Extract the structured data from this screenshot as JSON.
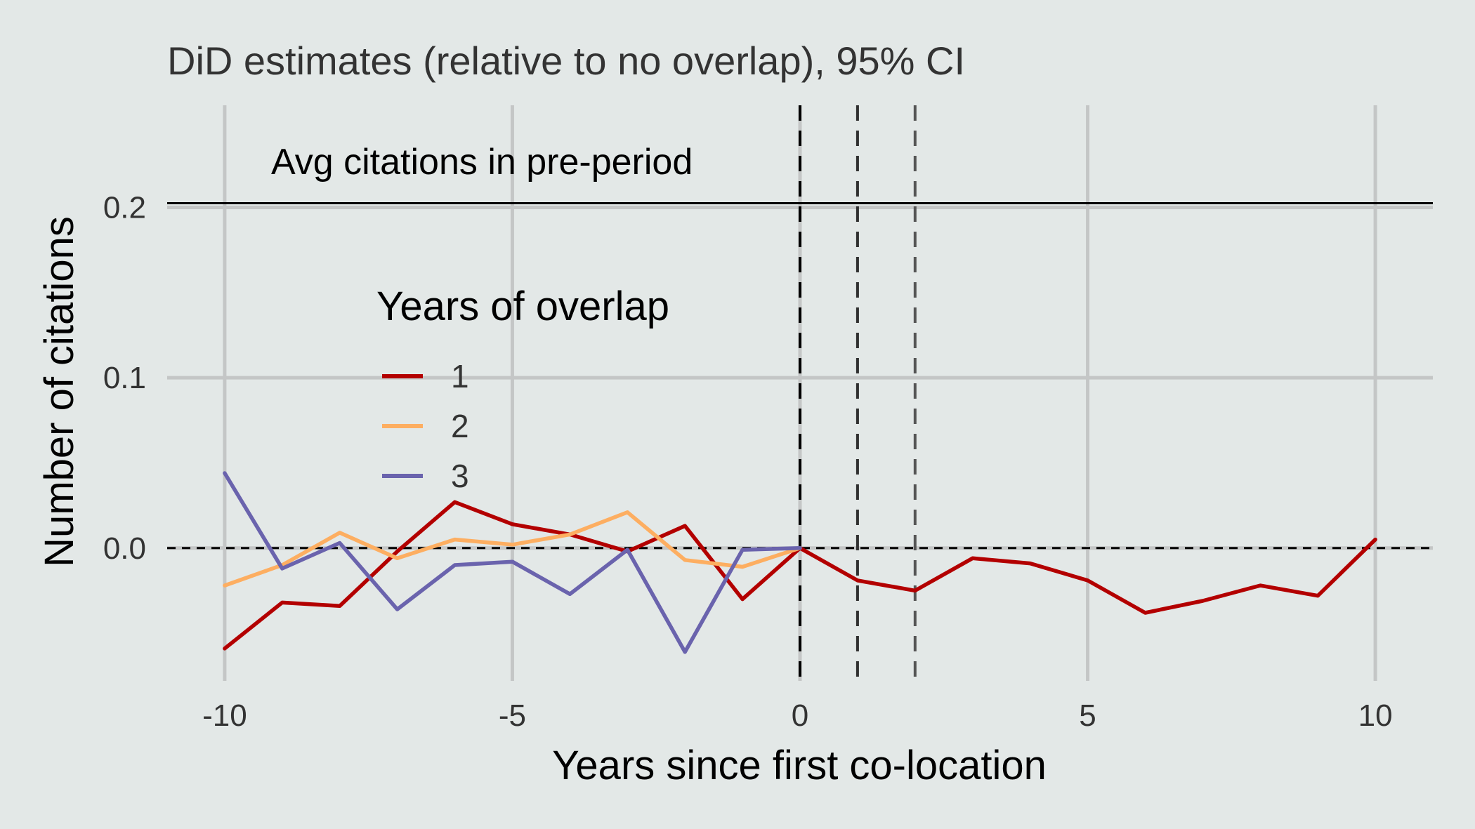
{
  "chart_data": {
    "type": "line",
    "title": "DiD estimates (relative to no overlap), 95% CI",
    "xlabel": "Years since first co-location",
    "ylabel": "Number of citations",
    "xlim": [
      -11,
      11
    ],
    "ylim": [
      -0.078,
      0.26
    ],
    "x_ticks": [
      -10,
      -5,
      0,
      5,
      10
    ],
    "x_tick_labels": [
      "-10",
      "-5",
      "0",
      "5",
      "10"
    ],
    "y_ticks": [
      0.0,
      0.1,
      0.2
    ],
    "y_tick_labels": [
      "0.0",
      "0.1",
      "0.2"
    ],
    "grid": true,
    "legend": {
      "title": "Years of overlap",
      "placement": "inside-left",
      "entries": [
        "1",
        "2",
        "3"
      ]
    },
    "reference_lines": {
      "horizontal_solid": {
        "y": 0.2,
        "label": "Avg citations in pre-period"
      },
      "horizontal_dashed": {
        "y": 0.0
      },
      "vertical_dashed": [
        0,
        1,
        2
      ]
    },
    "series": [
      {
        "name": "1",
        "color": "#b30000",
        "x": [
          -10,
          -9,
          -8,
          -7,
          -6,
          -5,
          -4,
          -3,
          -2,
          -1,
          0,
          1,
          2,
          3,
          4,
          5,
          6,
          7,
          8,
          9,
          10
        ],
        "y": [
          -0.059,
          -0.032,
          -0.034,
          -0.002,
          0.027,
          0.014,
          0.008,
          -0.002,
          0.013,
          -0.03,
          0.0,
          -0.019,
          -0.025,
          -0.006,
          -0.009,
          -0.019,
          -0.038,
          -0.031,
          -0.022,
          -0.028,
          0.005
        ]
      },
      {
        "name": "2",
        "color": "#fdae61",
        "x": [
          -10,
          -9,
          -8,
          -7,
          -6,
          -5,
          -4,
          -3,
          -2,
          -1,
          0
        ],
        "y": [
          -0.022,
          -0.01,
          0.009,
          -0.006,
          0.005,
          0.002,
          0.008,
          0.021,
          -0.007,
          -0.011,
          0.0
        ]
      },
      {
        "name": "3",
        "color": "#6a63ad",
        "x": [
          -10,
          -9,
          -8,
          -7,
          -6,
          -5,
          -4,
          -3,
          -2,
          -1,
          0
        ],
        "y": [
          0.044,
          -0.012,
          0.003,
          -0.036,
          -0.01,
          -0.008,
          -0.027,
          -0.001,
          -0.061,
          -0.001,
          0.0
        ]
      }
    ]
  }
}
